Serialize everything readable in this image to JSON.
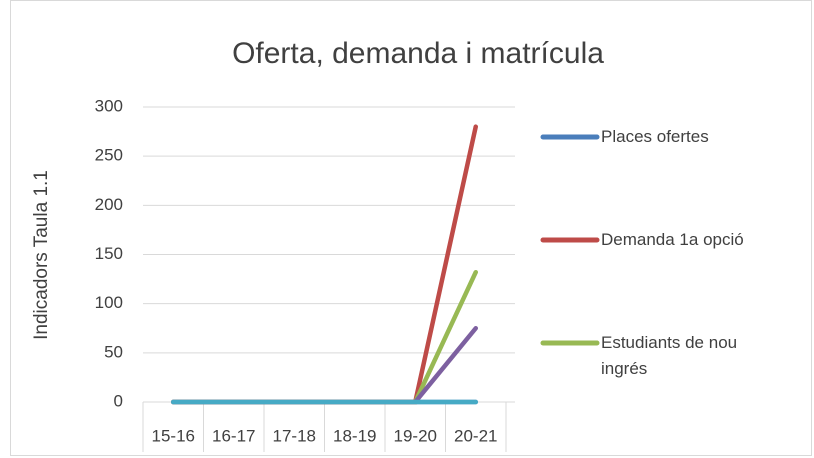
{
  "chart_data": {
    "type": "line",
    "title": "Oferta, demanda i matrícula",
    "y_label": "Indicadors Taula 1.1",
    "categories": [
      "15-16",
      "16-17",
      "17-18",
      "18-19",
      "19-20",
      "20-21"
    ],
    "series": [
      {
        "name": "Places ofertes",
        "color": "#4a7ebb",
        "values": [
          0,
          0,
          0,
          0,
          0,
          0
        ]
      },
      {
        "name": "Demanda 1a opció",
        "color": "#be4b48",
        "values": [
          0,
          0,
          0,
          0,
          0,
          280
        ]
      },
      {
        "name": "Estudiants de nou ingrés",
        "color": "#98b954",
        "values": [
          0,
          0,
          0,
          0,
          0,
          132
        ]
      },
      {
        "color": "#7d60a0",
        "values": [
          0,
          0,
          0,
          0,
          0,
          75
        ]
      },
      {
        "color": "#46aac5",
        "values": [
          0,
          0,
          0,
          0,
          0,
          0
        ]
      }
    ],
    "ylim": [
      0,
      300
    ],
    "yticks": [
      0,
      50,
      100,
      150,
      200,
      250,
      300
    ],
    "grid": true,
    "legend": "right"
  }
}
